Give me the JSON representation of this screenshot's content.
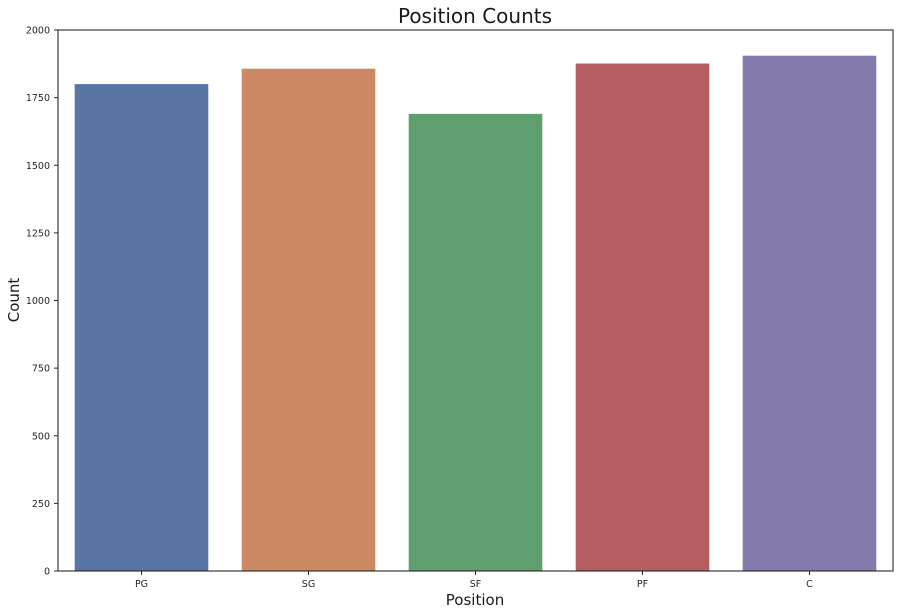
{
  "chart_data": {
    "type": "bar",
    "title": "Position Counts",
    "xlabel": "Position",
    "ylabel": "Count",
    "categories": [
      "PG",
      "SG",
      "SF",
      "PF",
      "C"
    ],
    "values": [
      1800,
      1857,
      1690,
      1876,
      1905
    ],
    "colors": [
      "#5975a4",
      "#cc8963",
      "#5f9e6e",
      "#b55d60",
      "#857aab"
    ],
    "ylim": [
      0,
      2000
    ],
    "yticks": [
      0,
      250,
      500,
      750,
      1000,
      1250,
      1500,
      1750,
      2000
    ],
    "grid": false,
    "legend": "none"
  }
}
